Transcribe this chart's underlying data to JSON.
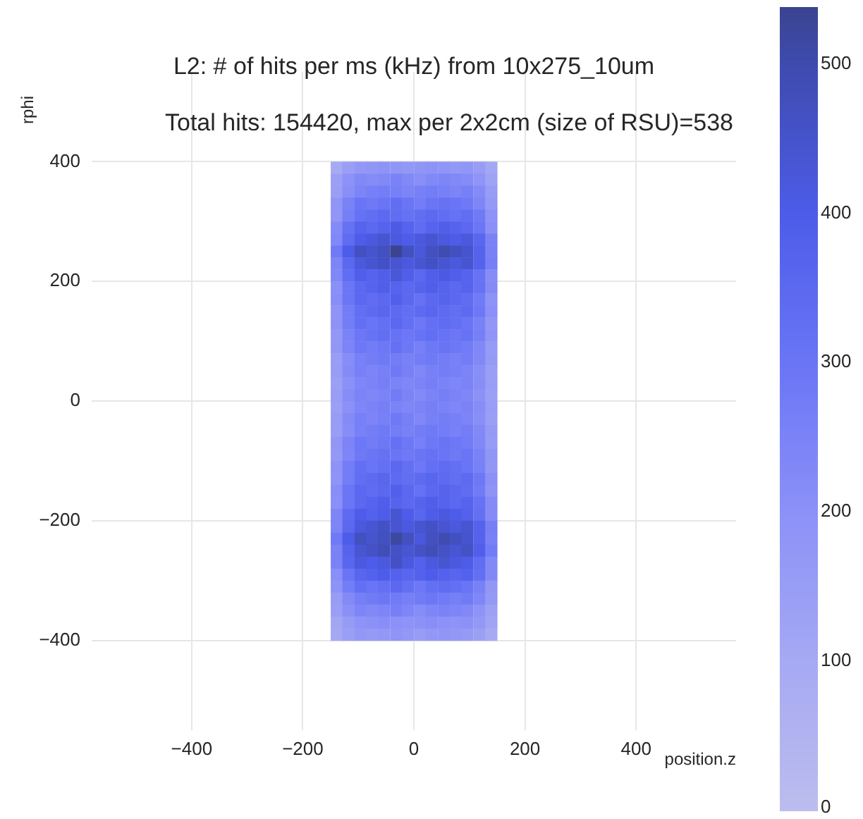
{
  "chart_data": {
    "type": "heatmap",
    "title": "L2: # of hits per ms (kHz) from 10x275_10um",
    "annotations": [
      "Total hits: 154420, max per 2x2cm (size of RSU)=538"
    ],
    "xlabel": "position.z",
    "ylabel": "rphi",
    "x": [
      -139,
      -118,
      -96,
      -75,
      -54,
      -32,
      -11,
      11,
      32,
      54,
      75,
      96,
      118,
      139
    ],
    "y": [
      390,
      370,
      350,
      330,
      310,
      290,
      270,
      250,
      230,
      210,
      190,
      170,
      150,
      130,
      110,
      90,
      70,
      50,
      30,
      10,
      -10,
      -30,
      -50,
      -70,
      -90,
      -110,
      -130,
      -150,
      -170,
      -190,
      -210,
      -230,
      -250,
      -270,
      -290,
      -310,
      -330,
      -350,
      -370,
      -390
    ],
    "xlim": [
      -580,
      580
    ],
    "ylim": [
      -550,
      550
    ],
    "xticks": [
      -400,
      -200,
      0,
      200,
      400
    ],
    "yticks": [
      -400,
      -200,
      0,
      200,
      400
    ],
    "grid": true,
    "clim": [
      0,
      538
    ],
    "cticks": [
      0,
      100,
      200,
      300,
      400,
      500
    ],
    "cells": [
      [
        99,
        144,
        171,
        180,
        189,
        180,
        171,
        180,
        189,
        180,
        171,
        180,
        153,
        108
      ],
      [
        138,
        196,
        230,
        219,
        230,
        253,
        230,
        207,
        230,
        242,
        230,
        219,
        184,
        127
      ],
      [
        143,
        208,
        247,
        260,
        273,
        260,
        247,
        260,
        273,
        260,
        247,
        260,
        221,
        156
      ],
      [
        180,
        255,
        300,
        285,
        300,
        330,
        300,
        270,
        300,
        315,
        300,
        285,
        240,
        165
      ],
      [
        182,
        264,
        314,
        330,
        347,
        330,
        314,
        330,
        347,
        330,
        314,
        330,
        281,
        198
      ],
      [
        222,
        315,
        370,
        352,
        370,
        407,
        370,
        333,
        370,
        389,
        370,
        352,
        296,
        204
      ],
      [
        231,
        336,
        399,
        420,
        441,
        420,
        399,
        420,
        441,
        420,
        399,
        420,
        357,
        252
      ],
      [
        282,
        400,
        470,
        447,
        470,
        538,
        470,
        423,
        470,
        494,
        470,
        447,
        376,
        259
      ],
      [
        242,
        352,
        418,
        440,
        462,
        440,
        418,
        440,
        462,
        440,
        418,
        440,
        374,
        264
      ],
      [
        234,
        332,
        390,
        371,
        390,
        429,
        390,
        351,
        390,
        410,
        390,
        371,
        312,
        215
      ],
      [
        204,
        296,
        352,
        370,
        389,
        370,
        352,
        370,
        389,
        370,
        352,
        370,
        315,
        222
      ],
      [
        210,
        298,
        350,
        333,
        350,
        385,
        350,
        315,
        350,
        368,
        350,
        333,
        280,
        193
      ],
      [
        187,
        272,
        323,
        340,
        357,
        340,
        323,
        340,
        357,
        340,
        323,
        340,
        289,
        204
      ],
      [
        192,
        272,
        320,
        304,
        320,
        352,
        320,
        288,
        320,
        336,
        320,
        304,
        256,
        176
      ],
      [
        171,
        248,
        295,
        310,
        326,
        310,
        295,
        310,
        326,
        310,
        295,
        310,
        264,
        186
      ],
      [
        174,
        247,
        290,
        276,
        290,
        319,
        290,
        261,
        290,
        305,
        290,
        276,
        232,
        160
      ],
      [
        149,
        216,
        257,
        270,
        284,
        270,
        257,
        270,
        284,
        270,
        257,
        270,
        230,
        162
      ],
      [
        156,
        221,
        260,
        247,
        260,
        286,
        260,
        234,
        260,
        273,
        260,
        247,
        208,
        143
      ],
      [
        138,
        200,
        238,
        250,
        263,
        250,
        238,
        250,
        263,
        250,
        238,
        250,
        213,
        150
      ],
      [
        150,
        213,
        250,
        238,
        250,
        275,
        250,
        225,
        250,
        263,
        250,
        238,
        200,
        138
      ],
      [
        138,
        200,
        238,
        250,
        263,
        250,
        238,
        250,
        263,
        250,
        238,
        250,
        213,
        150
      ],
      [
        156,
        221,
        260,
        247,
        260,
        286,
        260,
        234,
        260,
        273,
        260,
        247,
        208,
        143
      ],
      [
        149,
        216,
        257,
        270,
        284,
        270,
        257,
        270,
        284,
        270,
        257,
        270,
        230,
        162
      ],
      [
        174,
        247,
        290,
        276,
        290,
        319,
        290,
        261,
        290,
        305,
        290,
        276,
        232,
        160
      ],
      [
        165,
        240,
        285,
        300,
        315,
        300,
        285,
        300,
        315,
        300,
        285,
        300,
        255,
        180
      ],
      [
        192,
        272,
        320,
        304,
        320,
        352,
        320,
        288,
        320,
        336,
        320,
        304,
        256,
        176
      ],
      [
        187,
        272,
        323,
        340,
        357,
        340,
        323,
        340,
        357,
        340,
        323,
        340,
        289,
        204
      ],
      [
        210,
        298,
        350,
        333,
        350,
        385,
        350,
        315,
        350,
        368,
        350,
        333,
        280,
        193
      ],
      [
        204,
        296,
        352,
        370,
        389,
        370,
        352,
        370,
        389,
        370,
        352,
        370,
        315,
        222
      ],
      [
        240,
        340,
        400,
        380,
        400,
        440,
        400,
        360,
        400,
        420,
        400,
        380,
        320,
        220
      ],
      [
        242,
        352,
        418,
        440,
        462,
        440,
        418,
        440,
        462,
        440,
        418,
        440,
        374,
        264
      ],
      [
        282,
        400,
        470,
        447,
        470,
        517,
        470,
        423,
        470,
        494,
        470,
        447,
        376,
        259
      ],
      [
        253,
        368,
        437,
        460,
        483,
        460,
        437,
        460,
        483,
        460,
        437,
        460,
        391,
        276
      ],
      [
        252,
        357,
        420,
        399,
        420,
        462,
        420,
        378,
        420,
        441,
        420,
        399,
        336,
        231
      ],
      [
        209,
        304,
        361,
        380,
        399,
        380,
        361,
        380,
        399,
        380,
        361,
        380,
        323,
        228
      ],
      [
        192,
        272,
        320,
        304,
        320,
        352,
        320,
        288,
        320,
        336,
        320,
        304,
        256,
        176
      ],
      [
        154,
        224,
        266,
        280,
        294,
        280,
        266,
        280,
        294,
        280,
        266,
        280,
        238,
        168
      ],
      [
        144,
        204,
        240,
        228,
        240,
        264,
        240,
        216,
        240,
        252,
        240,
        228,
        192,
        132
      ],
      [
        110,
        160,
        190,
        200,
        210,
        200,
        190,
        200,
        210,
        200,
        190,
        200,
        170,
        120
      ],
      [
        102,
        145,
        170,
        162,
        170,
        187,
        170,
        153,
        170,
        179,
        170,
        162,
        136,
        94
      ]
    ]
  }
}
